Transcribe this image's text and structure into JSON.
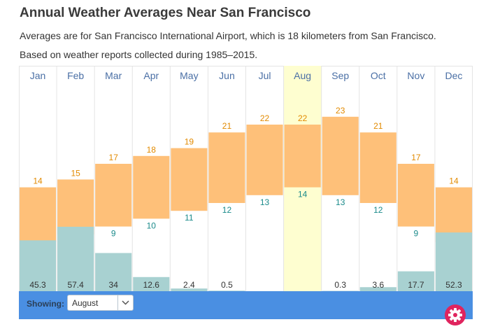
{
  "header": {
    "title": "Annual Weather Averages Near San Francisco",
    "subtitle1": "Averages are for San Francisco International Airport, which is 18 kilometers from San Francisco.",
    "subtitle2": "Based on weather reports collected during 1985–2015."
  },
  "controls": {
    "showing_label": "Showing:",
    "selected_month": "August"
  },
  "colors": {
    "temperature_bar": "#fec079",
    "precipitation_bar": "#a8d1d1",
    "high_label": "#e28a00",
    "low_label": "#1a8a8a",
    "month_label": "#4a6fa5",
    "highlight": "#fefed0",
    "control_bar": "#4a8fe2",
    "settings_button": "#e0245e"
  },
  "icons": {
    "dropdown": "chevron-down-icon",
    "settings": "gear-icon"
  },
  "chart_data": {
    "type": "bar",
    "categories": [
      "Jan",
      "Feb",
      "Mar",
      "Apr",
      "May",
      "Jun",
      "Jul",
      "Aug",
      "Sep",
      "Oct",
      "Nov",
      "Dec"
    ],
    "highlighted_category": "Aug",
    "series": [
      {
        "values": [
          14,
          15,
          17,
          18,
          19,
          21,
          22,
          22,
          23,
          21,
          17,
          14
        ]
      },
      {
        "values": [
          7,
          8,
          9,
          10,
          11,
          12,
          13,
          14,
          13,
          12,
          9,
          7
        ]
      },
      {
        "values": [
          45.3,
          57.4,
          34,
          12.6,
          2.4,
          0.5,
          0.1,
          0,
          0.3,
          3.6,
          17.7,
          52.3
        ],
        "labels": [
          "45.3",
          "57.4",
          "34",
          "12.6",
          "2.4",
          "0.5",
          "",
          "",
          "0.3",
          "3.6",
          "17.7",
          "52.3"
        ]
      }
    ],
    "grid": true,
    "legend": "none"
  }
}
